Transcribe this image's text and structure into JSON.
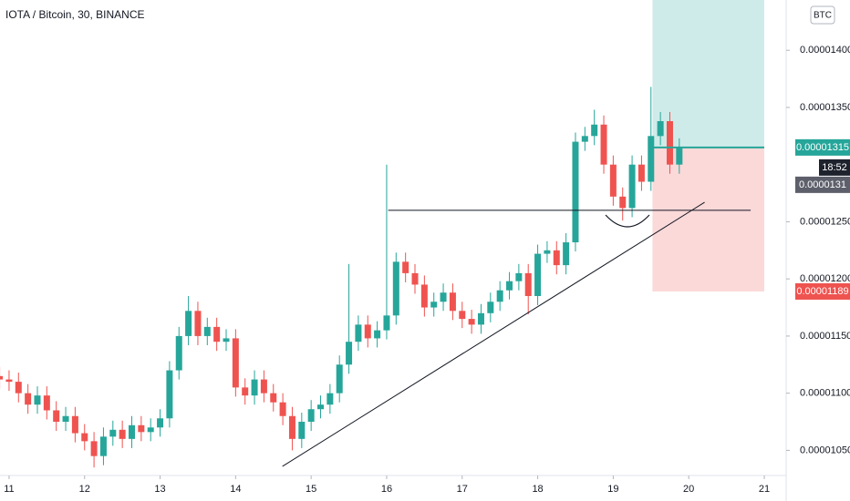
{
  "chart_data": {
    "type": "candlestick",
    "title": "IOTA / Bitcoin, 30, BINANCE",
    "currency_button": "BTC",
    "up_color": "#26a69a",
    "down_color": "#ef5350",
    "x": [
      10.875,
      11,
      11.125,
      11.25,
      11.375,
      11.5,
      11.625,
      11.75,
      11.875,
      12,
      12.125,
      12.25,
      12.375,
      12.5,
      12.625,
      12.75,
      12.875,
      13,
      13.125,
      13.25,
      13.375,
      13.5,
      13.625,
      13.75,
      13.875,
      14,
      14.125,
      14.25,
      14.375,
      14.5,
      14.625,
      14.75,
      14.875,
      15,
      15.125,
      15.25,
      15.375,
      15.5,
      15.625,
      15.75,
      15.875,
      16,
      16.125,
      16.25,
      16.375,
      16.5,
      16.625,
      16.75,
      16.875,
      17,
      17.125,
      17.25,
      17.375,
      17.5,
      17.625,
      17.75,
      17.875,
      18,
      18.125,
      18.25,
      18.375,
      18.5,
      18.625,
      18.75,
      18.875,
      19,
      19.125,
      19.25,
      19.375,
      19.5,
      19.625,
      19.75,
      19.875
    ],
    "open": [
      1.115e-05,
      1.112e-05,
      1.11e-05,
      1.1e-05,
      1.09e-05,
      1.098e-05,
      1.085e-05,
      1.075e-05,
      1.08e-05,
      1.065e-05,
      1.058e-05,
      1.045e-05,
      1.062e-05,
      1.068e-05,
      1.06e-05,
      1.072e-05,
      1.066e-05,
      1.07e-05,
      1.078e-05,
      1.12e-05,
      1.15e-05,
      1.172e-05,
      1.15e-05,
      1.158e-05,
      1.145e-05,
      1.148e-05,
      1.105e-05,
      1.098e-05,
      1.112e-05,
      1.1e-05,
      1.092e-05,
      1.08e-05,
      1.06e-05,
      1.075e-05,
      1.086e-05,
      1.09e-05,
      1.1e-05,
      1.125e-05,
      1.145e-05,
      1.16e-05,
      1.148e-05,
      1.155e-05,
      1.168e-05,
      1.215e-05,
      1.205e-05,
      1.195e-05,
      1.175e-05,
      1.18e-05,
      1.188e-05,
      1.172e-05,
      1.165e-05,
      1.16e-05,
      1.17e-05,
      1.18e-05,
      1.19e-05,
      1.198e-05,
      1.205e-05,
      1.185e-05,
      1.222e-05,
      1.225e-05,
      1.212e-05,
      1.232e-05,
      1.32e-05,
      1.325e-05,
      1.335e-05,
      1.3e-05,
      1.272e-05,
      1.262e-05,
      1.3e-05,
      1.285e-05,
      1.325e-05,
      1.338e-05,
      1.3e-05
    ],
    "high": [
      1.123e-05,
      1.12e-05,
      1.118e-05,
      1.108e-05,
      1.106e-05,
      1.106e-05,
      1.093e-05,
      1.088e-05,
      1.088e-05,
      1.073e-05,
      1.066e-05,
      1.07e-05,
      1.076e-05,
      1.076e-05,
      1.08e-05,
      1.08e-05,
      1.078e-05,
      1.086e-05,
      1.128e-05,
      1.158e-05,
      1.185e-05,
      1.18e-05,
      1.166e-05,
      1.166e-05,
      1.156e-05,
      1.156e-05,
      1.113e-05,
      1.12e-05,
      1.12e-05,
      1.108e-05,
      1.1e-05,
      1.088e-05,
      1.083e-05,
      1.094e-05,
      1.098e-05,
      1.108e-05,
      1.133e-05,
      1.213e-05,
      1.168e-05,
      1.168e-05,
      1.163e-05,
      1.3e-05,
      1.223e-05,
      1.223e-05,
      1.213e-05,
      1.203e-05,
      1.188e-05,
      1.196e-05,
      1.196e-05,
      1.18e-05,
      1.173e-05,
      1.178e-05,
      1.188e-05,
      1.198e-05,
      1.206e-05,
      1.213e-05,
      1.213e-05,
      1.23e-05,
      1.233e-05,
      1.233e-05,
      1.24e-05,
      1.328e-05,
      1.333e-05,
      1.348e-05,
      1.343e-05,
      1.308e-05,
      1.28e-05,
      1.308e-05,
      1.308e-05,
      1.368e-05,
      1.346e-05,
      1.346e-05,
      1.323e-05
    ],
    "low": [
      1.104e-05,
      1.102e-05,
      1.092e-05,
      1.082e-05,
      1.082e-05,
      1.077e-05,
      1.067e-05,
      1.067e-05,
      1.057e-05,
      1.05e-05,
      1.035e-05,
      1.037e-05,
      1.054e-05,
      1.052e-05,
      1.052e-05,
      1.058e-05,
      1.058e-05,
      1.062e-05,
      1.07e-05,
      1.112e-05,
      1.142e-05,
      1.142e-05,
      1.142e-05,
      1.137e-05,
      1.137e-05,
      1.097e-05,
      1.09e-05,
      1.09e-05,
      1.092e-05,
      1.084e-05,
      1.072e-05,
      1.05e-05,
      1.052e-05,
      1.067e-05,
      1.078e-05,
      1.082e-05,
      1.092e-05,
      1.117e-05,
      1.137e-05,
      1.14e-05,
      1.14e-05,
      1.147e-05,
      1.16e-05,
      1.197e-05,
      1.187e-05,
      1.167e-05,
      1.167e-05,
      1.172e-05,
      1.164e-05,
      1.157e-05,
      1.152e-05,
      1.152e-05,
      1.162e-05,
      1.172e-05,
      1.182e-05,
      1.19e-05,
      1.169e-05,
      1.177e-05,
      1.214e-05,
      1.204e-05,
      1.204e-05,
      1.224e-05,
      1.312e-05,
      1.317e-05,
      1.292e-05,
      1.264e-05,
      1.251e-05,
      1.254e-05,
      1.277e-05,
      1.277e-05,
      1.317e-05,
      1.292e-05,
      1.292e-05
    ],
    "close": [
      1.112e-05,
      1.11e-05,
      1.1e-05,
      1.09e-05,
      1.098e-05,
      1.085e-05,
      1.075e-05,
      1.08e-05,
      1.065e-05,
      1.058e-05,
      1.045e-05,
      1.062e-05,
      1.068e-05,
      1.06e-05,
      1.072e-05,
      1.066e-05,
      1.07e-05,
      1.078e-05,
      1.12e-05,
      1.15e-05,
      1.172e-05,
      1.15e-05,
      1.158e-05,
      1.145e-05,
      1.148e-05,
      1.105e-05,
      1.098e-05,
      1.112e-05,
      1.1e-05,
      1.092e-05,
      1.08e-05,
      1.06e-05,
      1.075e-05,
      1.086e-05,
      1.09e-05,
      1.1e-05,
      1.125e-05,
      1.145e-05,
      1.16e-05,
      1.148e-05,
      1.155e-05,
      1.168e-05,
      1.215e-05,
      1.205e-05,
      1.195e-05,
      1.175e-05,
      1.18e-05,
      1.188e-05,
      1.172e-05,
      1.165e-05,
      1.16e-05,
      1.17e-05,
      1.18e-05,
      1.19e-05,
      1.198e-05,
      1.205e-05,
      1.185e-05,
      1.222e-05,
      1.225e-05,
      1.212e-05,
      1.232e-05,
      1.32e-05,
      1.325e-05,
      1.335e-05,
      1.3e-05,
      1.272e-05,
      1.262e-05,
      1.3e-05,
      1.285e-05,
      1.325e-05,
      1.338e-05,
      1.3e-05,
      1.315e-05
    ],
    "xlim": [
      10.88,
      21.29
    ],
    "xticks": [
      11,
      12,
      13,
      14,
      15,
      16,
      17,
      18,
      19,
      20,
      21
    ],
    "ylim": [
      1.028e-05,
      1.444e-05
    ],
    "yticks": [
      {
        "value": 1.05e-05,
        "label": "0.00001050"
      },
      {
        "value": 1.1e-05,
        "label": "0.00001100"
      },
      {
        "value": 1.15e-05,
        "label": "0.00001150"
      },
      {
        "value": 1.2e-05,
        "label": "0.00001200"
      },
      {
        "value": 1.25e-05,
        "label": "0.00001250"
      },
      {
        "value": 1.35e-05,
        "label": "0.00001350"
      },
      {
        "value": 1.4e-05,
        "label": "0.00001400"
      }
    ],
    "lines": [
      {
        "x": [
          16.02,
          20.82
        ],
        "y": [
          1.26e-05,
          1.26e-05
        ]
      },
      {
        "x": [
          14.62,
          20.21
        ],
        "y": [
          1.036e-05,
          1.267e-05
        ]
      }
    ],
    "position": {
      "x": [
        19.52,
        21
      ],
      "entry": 1.315e-05,
      "stop": 1.189e-05
    },
    "last_price": 1.315e-05,
    "countdown": "18:52",
    "prev_price": 1.31e-05
  }
}
